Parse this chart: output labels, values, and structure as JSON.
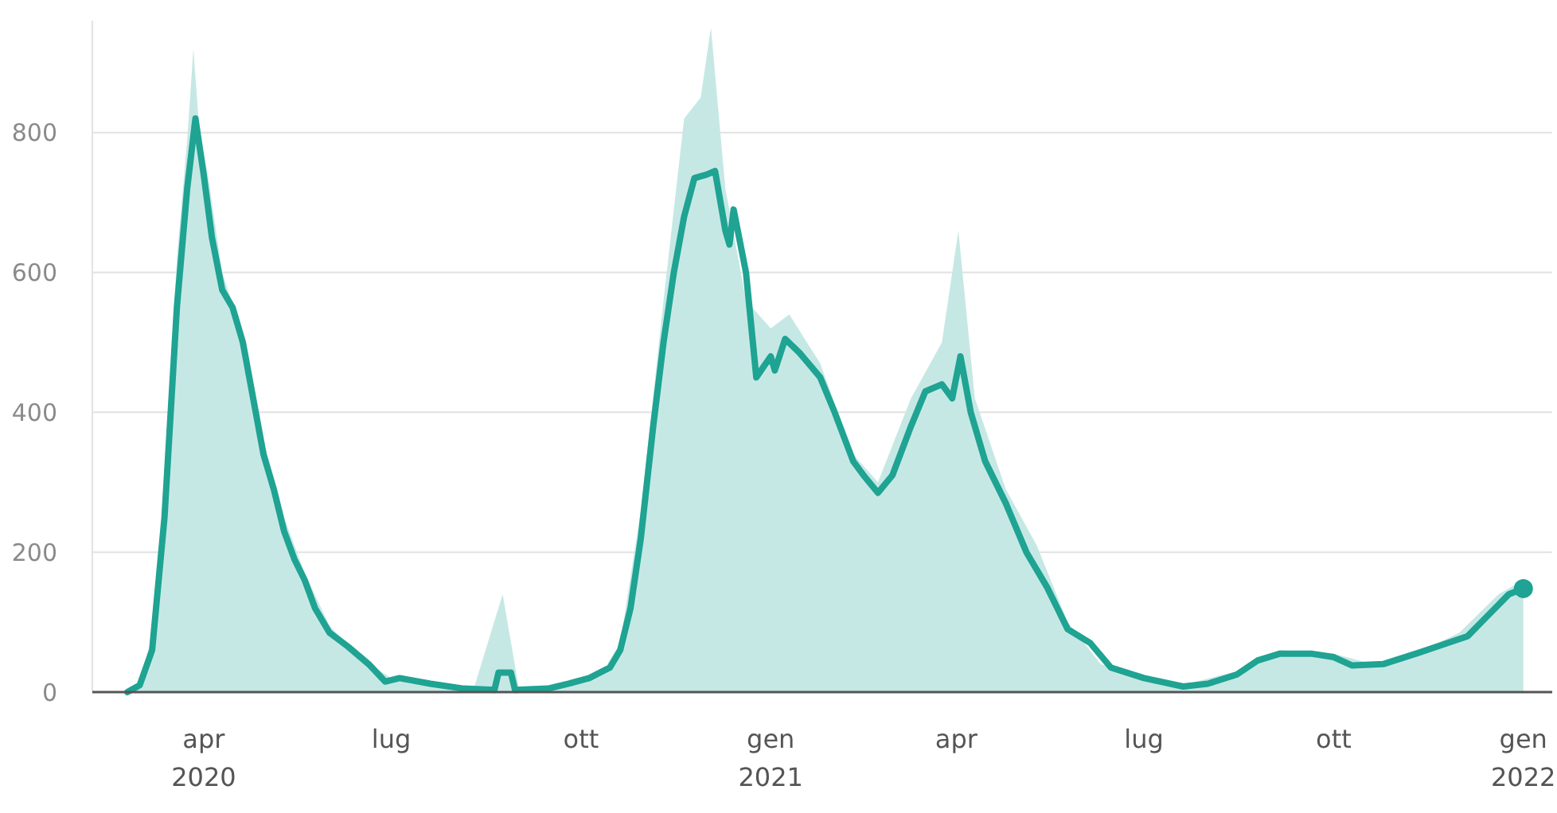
{
  "chart_data": {
    "type": "line",
    "xlim": [
      "2020-02-07",
      "2022-01-15"
    ],
    "ylim": [
      0,
      960
    ],
    "yticks": [
      0,
      200,
      400,
      600,
      800
    ],
    "xticks": [
      {
        "value": "2020-04-01",
        "label": "apr 2020"
      },
      {
        "value": "2020-07-01",
        "label": "lug"
      },
      {
        "value": "2020-10-01",
        "label": "ott"
      },
      {
        "value": "2021-01-01",
        "label": "gen 2021"
      },
      {
        "value": "2021-04-01",
        "label": "apr"
      },
      {
        "value": "2021-07-01",
        "label": "lug"
      },
      {
        "value": "2021-10-01",
        "label": "ott"
      },
      {
        "value": "2022-01-01",
        "label": "gen 2022"
      }
    ],
    "grid": "y",
    "series": [
      {
        "type": "area",
        "color": "#c6e8e5",
        "x": [
          "2020-02-24",
          "2020-03-01",
          "2020-03-07",
          "2020-03-13",
          "2020-03-19",
          "2020-03-24",
          "2020-03-27",
          "2020-03-30",
          "2020-04-03",
          "2020-04-10",
          "2020-04-20",
          "2020-04-30",
          "2020-05-10",
          "2020-05-20",
          "2020-06-01",
          "2020-06-15",
          "2020-07-01",
          "2020-07-20",
          "2020-08-10",
          "2020-08-24",
          "2020-09-01",
          "2020-09-20",
          "2020-10-10",
          "2020-10-20",
          "2020-10-30",
          "2020-11-10",
          "2020-11-20",
          "2020-11-28",
          "2020-12-03",
          "2020-12-10",
          "2020-12-20",
          "2021-01-01",
          "2021-01-10",
          "2021-01-25",
          "2021-02-10",
          "2021-02-22",
          "2021-03-10",
          "2021-03-25",
          "2021-04-02",
          "2021-04-10",
          "2021-04-25",
          "2021-05-10",
          "2021-05-25",
          "2021-06-10",
          "2021-07-01",
          "2021-07-20",
          "2021-08-15",
          "2021-09-05",
          "2021-10-01",
          "2021-10-20",
          "2021-11-10",
          "2021-12-01",
          "2021-12-20",
          "2022-01-01"
        ],
        "values": [
          0,
          15,
          80,
          300,
          620,
          790,
          920,
          800,
          740,
          600,
          510,
          360,
          250,
          170,
          95,
          50,
          20,
          12,
          5,
          140,
          3,
          6,
          22,
          70,
          260,
          560,
          820,
          850,
          950,
          720,
          560,
          520,
          540,
          470,
          340,
          300,
          420,
          500,
          660,
          420,
          290,
          210,
          100,
          40,
          20,
          10,
          30,
          60,
          55,
          40,
          55,
          85,
          140,
          160
        ]
      },
      {
        "color": "#1fa392",
        "marker": "none",
        "x": [
          "2020-02-24",
          "2020-03-01",
          "2020-03-07",
          "2020-03-13",
          "2020-03-19",
          "2020-03-24",
          "2020-03-28",
          "2020-04-01",
          "2020-04-05",
          "2020-04-10",
          "2020-04-15",
          "2020-04-20",
          "2020-04-25",
          "2020-04-30",
          "2020-05-05",
          "2020-05-10",
          "2020-05-15",
          "2020-05-20",
          "2020-05-25",
          "2020-06-01",
          "2020-06-10",
          "2020-06-20",
          "2020-06-28",
          "2020-07-05",
          "2020-07-20",
          "2020-08-05",
          "2020-08-20",
          "2020-08-22",
          "2020-08-28",
          "2020-08-30",
          "2020-09-15",
          "2020-09-25",
          "2020-10-05",
          "2020-10-15",
          "2020-10-20",
          "2020-10-25",
          "2020-10-30",
          "2020-11-05",
          "2020-11-10",
          "2020-11-15",
          "2020-11-20",
          "2020-11-25",
          "2020-12-01",
          "2020-12-05",
          "2020-12-10",
          "2020-12-12",
          "2020-12-14",
          "2020-12-20",
          "2020-12-25",
          "2021-01-01",
          "2021-01-03",
          "2021-01-08",
          "2021-01-15",
          "2021-01-25",
          "2021-02-01",
          "2021-02-10",
          "2021-02-15",
          "2021-02-22",
          "2021-03-01",
          "2021-03-10",
          "2021-03-17",
          "2021-03-25",
          "2021-03-30",
          "2021-04-03",
          "2021-04-08",
          "2021-04-15",
          "2021-04-25",
          "2021-05-05",
          "2021-05-15",
          "2021-05-25",
          "2021-06-05",
          "2021-06-15",
          "2021-07-01",
          "2021-07-20",
          "2021-08-01",
          "2021-08-15",
          "2021-08-25",
          "2021-09-05",
          "2021-09-20",
          "2021-10-01",
          "2021-10-10",
          "2021-10-25",
          "2021-11-10",
          "2021-11-25",
          "2021-12-05",
          "2021-12-15",
          "2021-12-25",
          "2022-01-01"
        ],
        "values": [
          0,
          10,
          60,
          250,
          550,
          720,
          820,
          740,
          650,
          575,
          550,
          500,
          420,
          340,
          290,
          230,
          190,
          160,
          120,
          85,
          65,
          40,
          15,
          20,
          12,
          5,
          3,
          28,
          28,
          3,
          5,
          12,
          20,
          35,
          60,
          120,
          220,
          380,
          500,
          600,
          680,
          735,
          740,
          745,
          660,
          640,
          690,
          600,
          450,
          480,
          460,
          505,
          485,
          450,
          400,
          330,
          310,
          285,
          310,
          380,
          430,
          440,
          420,
          480,
          400,
          330,
          270,
          200,
          150,
          90,
          70,
          35,
          20,
          8,
          12,
          25,
          45,
          55,
          55,
          50,
          38,
          40,
          55,
          70,
          80,
          110,
          140,
          148
        ]
      },
      {
        "type": "scatter",
        "color": "#1fa392",
        "marker": "circle",
        "x": [
          "2022-01-01"
        ],
        "values": [
          148
        ]
      }
    ]
  }
}
